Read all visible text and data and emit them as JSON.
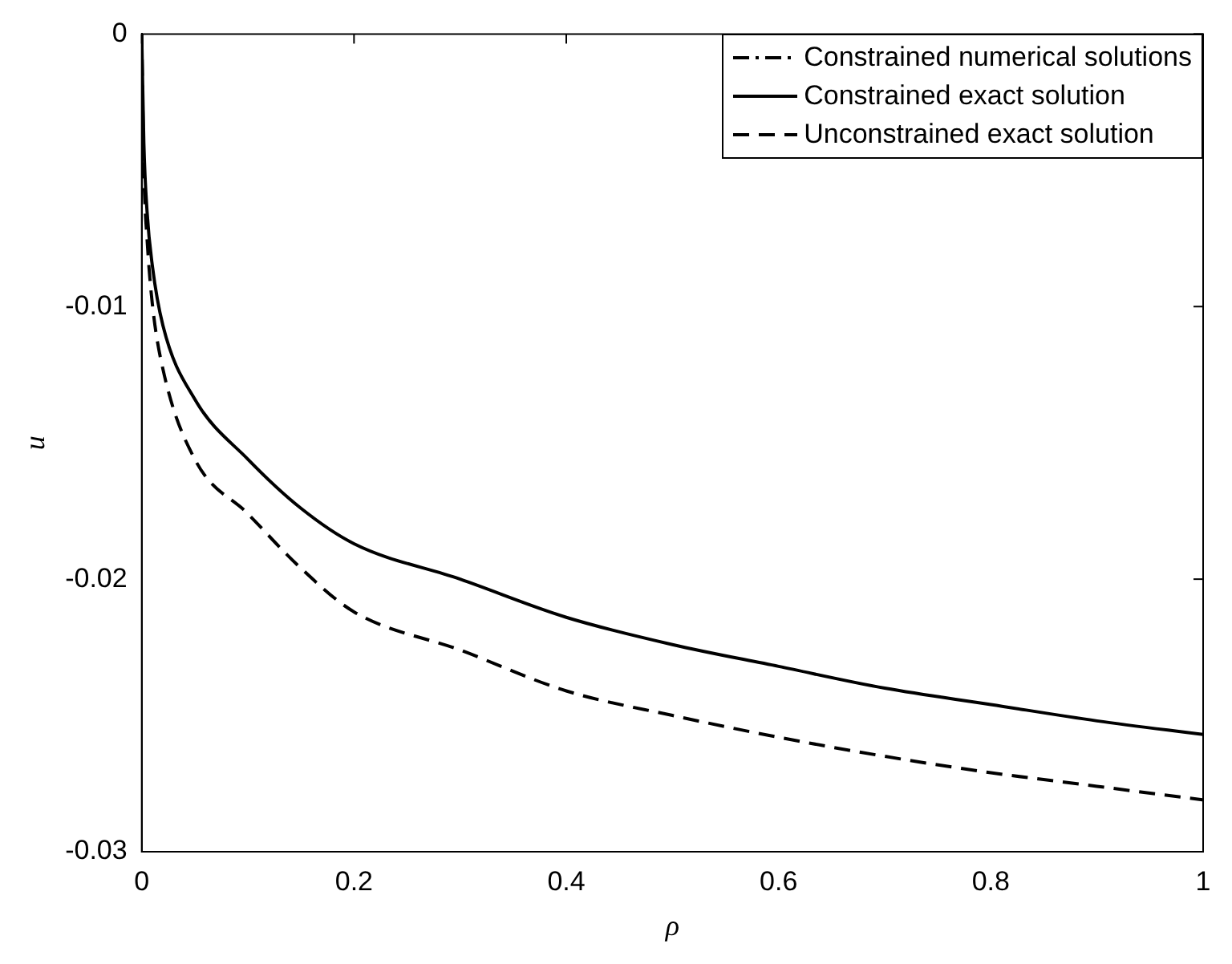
{
  "chart_data": {
    "type": "line",
    "xlabel": "ρ",
    "ylabel": "u",
    "xlim": [
      0,
      1
    ],
    "ylim": [
      -0.03,
      0
    ],
    "xticks": [
      0,
      0.2,
      0.4,
      0.6,
      0.8,
      1
    ],
    "yticks": [
      -0.03,
      -0.02,
      -0.01,
      0
    ],
    "grid": false,
    "legend": "top right",
    "marker": "none",
    "x": [
      0,
      0.002,
      0.005,
      0.01,
      0.02,
      0.05,
      0.1,
      0.15,
      0.2,
      0.3,
      0.4,
      0.5,
      0.6,
      0.7,
      0.8,
      0.9,
      1
    ],
    "series": [
      {
        "name": "Constrained numerical solutions",
        "color": "#000000",
        "line_style": "dashdot",
        "values": [
          null,
          null,
          null,
          null,
          null,
          null,
          null,
          null,
          null,
          null,
          null,
          null,
          null,
          null,
          null,
          null,
          null
        ]
      },
      {
        "name": "Constrained exact solution",
        "color": "#000000",
        "line_style": "solid",
        "values": [
          0,
          -0.004,
          -0.0065,
          -0.0085,
          -0.0107,
          -0.0134,
          -0.0156,
          -0.0174,
          -0.0187,
          -0.02,
          -0.0214,
          -0.0224,
          -0.0232,
          -0.024,
          -0.0246,
          -0.0252,
          -0.0257
        ]
      },
      {
        "name": "Unconstrained exact solution",
        "color": "#000000",
        "line_style": "dashed",
        "values": [
          0,
          -0.005,
          -0.0075,
          -0.0099,
          -0.0123,
          -0.0156,
          -0.0176,
          -0.0196,
          -0.0212,
          -0.0226,
          -0.0241,
          -0.025,
          -0.0258,
          -0.0265,
          -0.0271,
          -0.0276,
          -0.0281
        ]
      }
    ]
  }
}
